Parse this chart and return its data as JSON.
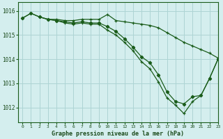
{
  "title": "Graphe pression niveau de la mer (hPa)",
  "bg_color": "#d4eeee",
  "grid_color": "#add4d4",
  "line_color": "#1a5c1a",
  "x_min": -0.5,
  "x_max": 23,
  "y_min": 1011.4,
  "y_max": 1016.35,
  "yticks": [
    1012,
    1013,
    1014,
    1015,
    1016
  ],
  "xticks": [
    0,
    1,
    2,
    3,
    4,
    5,
    6,
    7,
    8,
    9,
    10,
    11,
    12,
    13,
    14,
    15,
    16,
    17,
    18,
    19,
    20,
    21,
    22,
    23
  ],
  "line1_x": [
    0,
    1,
    2,
    3,
    4,
    5,
    6,
    7,
    8,
    9,
    10,
    11,
    12,
    13,
    14,
    15,
    16,
    17,
    18,
    19,
    20,
    21,
    22,
    23
  ],
  "line1_y": [
    1015.7,
    1015.9,
    1015.75,
    1015.65,
    1015.65,
    1015.6,
    1015.6,
    1015.65,
    1015.65,
    1015.65,
    1015.85,
    1015.6,
    1015.55,
    1015.5,
    1015.45,
    1015.4,
    1015.3,
    1015.1,
    1014.9,
    1014.7,
    1014.55,
    1014.4,
    1014.25,
    1014.05
  ],
  "line2_x": [
    0,
    1,
    2,
    3,
    4,
    5,
    6,
    7,
    8,
    9,
    10,
    11,
    12,
    13,
    14,
    15,
    16,
    17,
    18,
    19,
    20,
    21,
    22,
    23
  ],
  "line2_y": [
    1015.7,
    1015.9,
    1015.75,
    1015.65,
    1015.6,
    1015.55,
    1015.5,
    1015.55,
    1015.5,
    1015.5,
    1015.35,
    1015.15,
    1014.85,
    1014.5,
    1014.1,
    1013.85,
    1013.35,
    1012.65,
    1012.25,
    1012.15,
    1012.45,
    1012.5,
    1013.2,
    1014.0
  ],
  "line3_x": [
    2,
    3,
    4,
    5,
    6,
    7,
    8,
    9,
    10,
    11,
    12,
    13,
    14,
    15,
    16,
    17,
    18,
    19,
    20,
    21,
    22,
    23
  ],
  "line3_y": [
    1015.75,
    1015.65,
    1015.6,
    1015.5,
    1015.45,
    1015.5,
    1015.45,
    1015.45,
    1015.2,
    1015.0,
    1014.7,
    1014.35,
    1013.9,
    1013.6,
    1013.05,
    1012.4,
    1012.1,
    1011.75,
    1012.25,
    1012.5,
    1013.2,
    1014.0
  ]
}
